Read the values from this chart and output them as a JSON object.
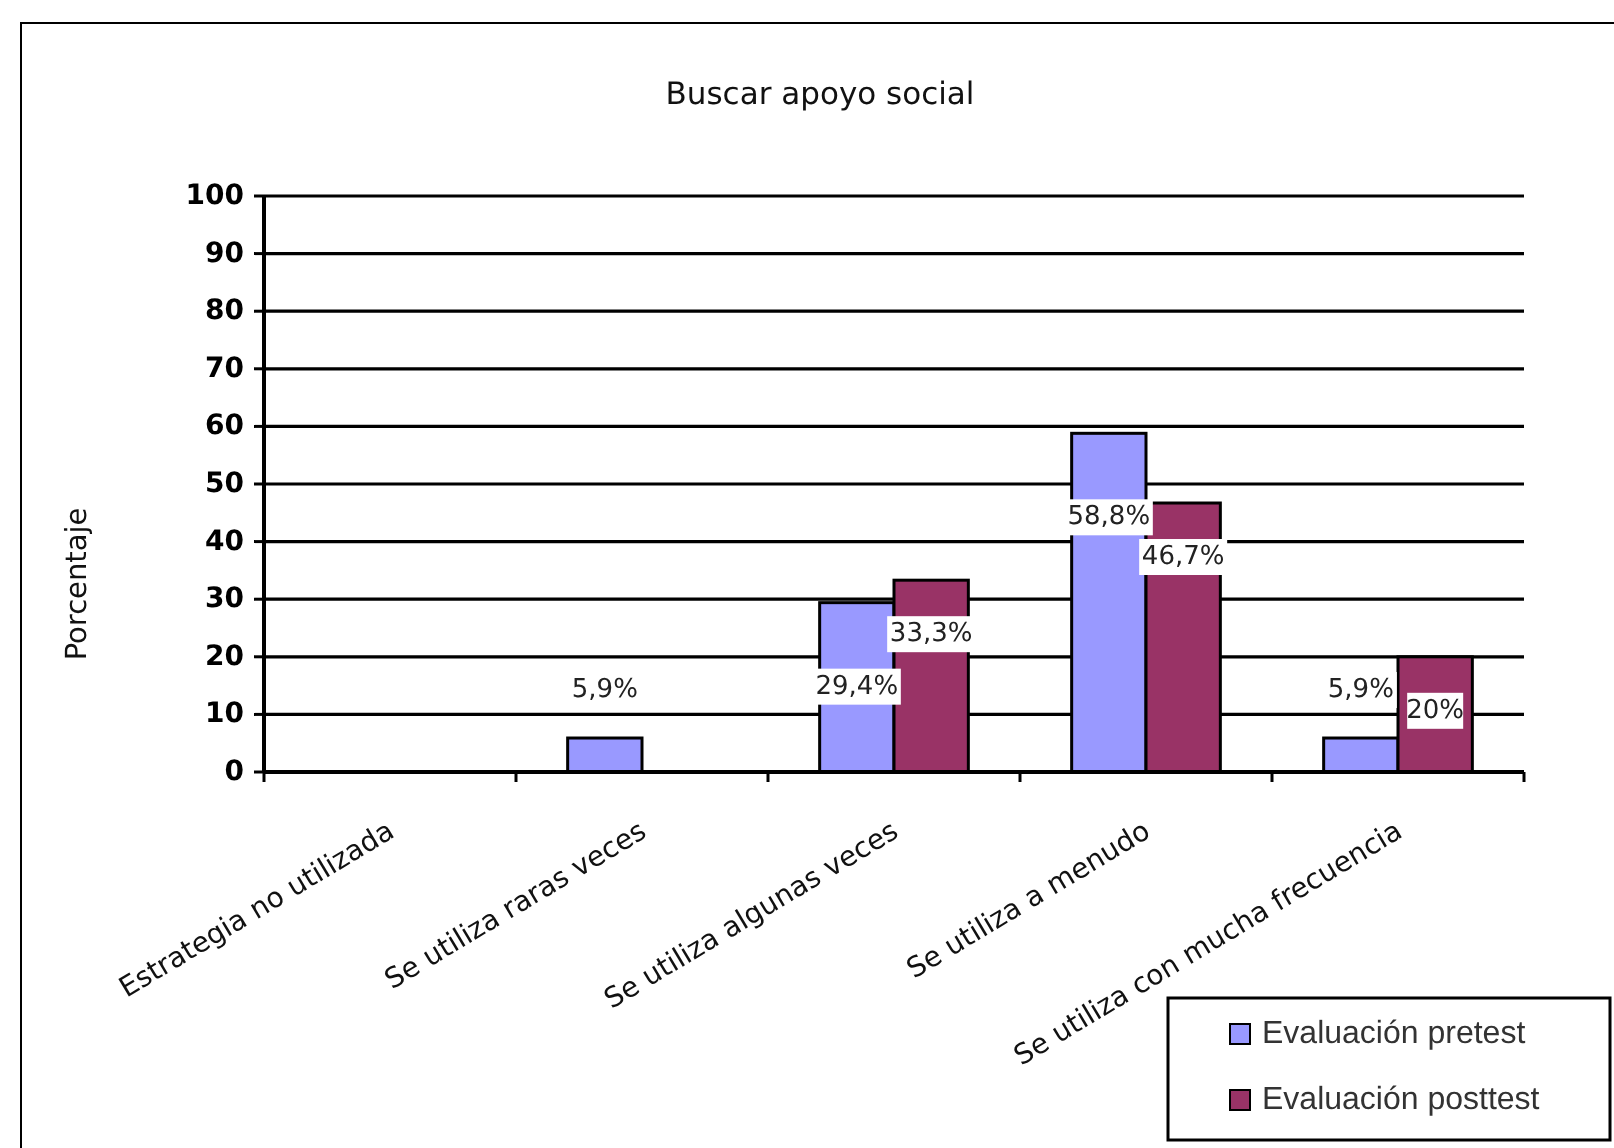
{
  "chart_data": {
    "type": "bar",
    "title": "Buscar apoyo social",
    "ylabel": "Porcentaje",
    "categories": [
      "Estrategia no utilizada",
      "Se utiliza raras veces",
      "Se utiliza algunas veces",
      "Se utiliza a menudo",
      "Se utiliza con mucha frecuencia"
    ],
    "series": [
      {
        "name": "Evaluación pretest",
        "color": "#9999ff",
        "values": [
          null,
          5.9,
          29.4,
          58.8,
          5.9
        ],
        "value_labels": [
          null,
          "5,9%",
          "29,4%",
          "58,8%",
          "5,9%"
        ]
      },
      {
        "name": "Evaluación posttest",
        "color": "#993366",
        "values": [
          null,
          null,
          33.3,
          46.7,
          20
        ],
        "value_labels": [
          null,
          null,
          "33,3%",
          "46,7%",
          "20%"
        ]
      }
    ],
    "ylim": [
      0,
      100
    ],
    "yticks": [
      0,
      10,
      20,
      30,
      40,
      50,
      60,
      70,
      80,
      90,
      100
    ],
    "grid": "y",
    "legend": "bottom right"
  }
}
